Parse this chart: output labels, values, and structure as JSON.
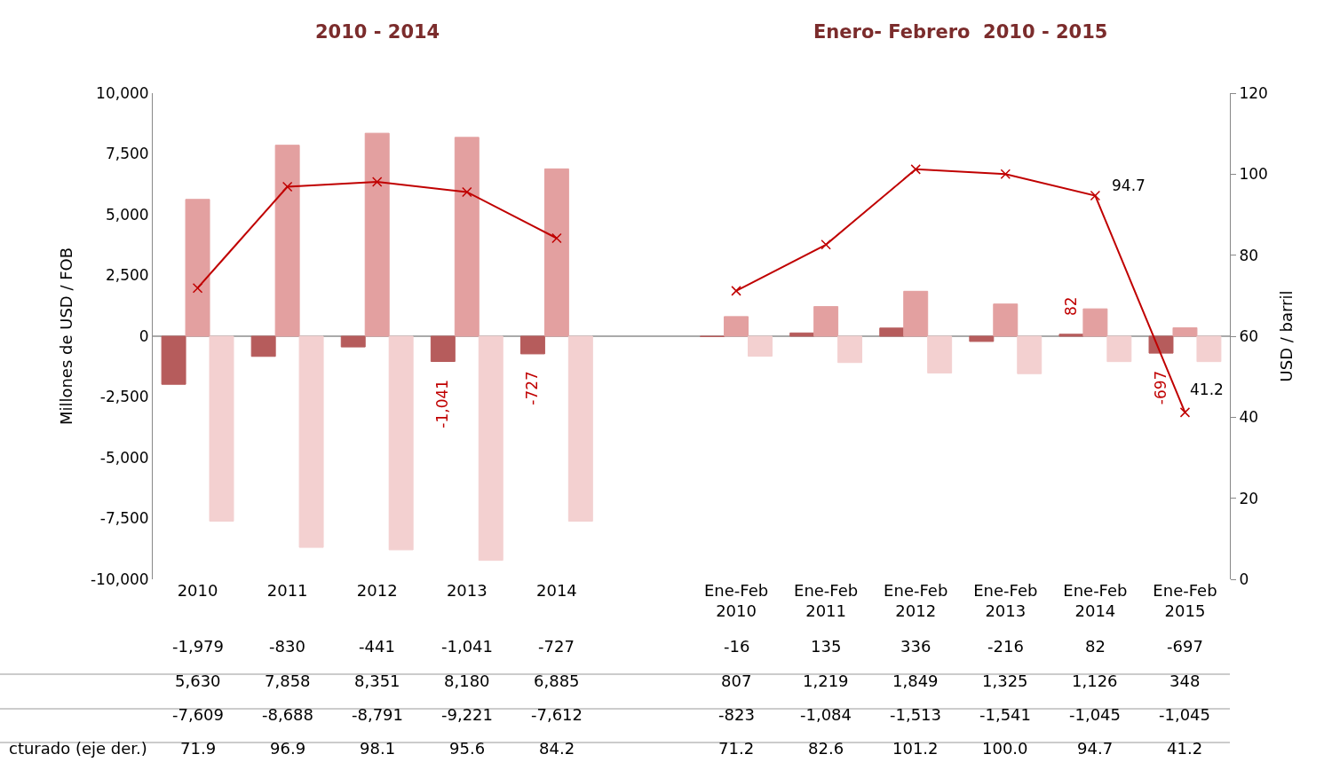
{
  "chart_data": {
    "type": "bar",
    "title": "2010 - 2014",
    "annotations": [
      "Enero- Febrero  2010 - 2015",
      "-1,041",
      "-727",
      "82",
      "-697",
      "94.7",
      "41.2"
    ],
    "categories": [
      "2010",
      "2011",
      "2012",
      "2013",
      "2014",
      null,
      "Ene-Feb 2010",
      "Ene-Feb 2011",
      "Ene-Feb 2012",
      "Ene-Feb 2013",
      "Ene-Feb 2014",
      "Ene-Feb 2015"
    ],
    "series": [
      {
        "color": "#b65c5c",
        "values": [
          -1979,
          -830,
          -441,
          -1041,
          -727,
          null,
          -16,
          135,
          336,
          -216,
          82,
          -697
        ],
        "value_labels": [
          "-1,979",
          "-830",
          "-441",
          "-1,041",
          "-727",
          null,
          "-16",
          "135",
          "336",
          "-216",
          "82",
          "-697"
        ]
      },
      {
        "color": "#e3a0a0",
        "values": [
          5630,
          7858,
          8351,
          8180,
          6885,
          null,
          807,
          1219,
          1849,
          1325,
          1126,
          348
        ],
        "value_labels": [
          "5,630",
          "7,858",
          "8,351",
          "8,180",
          "6,885",
          null,
          "807",
          "1,219",
          "1,849",
          "1,325",
          "1,126",
          "348"
        ]
      },
      {
        "color": "#f3d0d0",
        "values": [
          -7609,
          -8688,
          -8791,
          -9221,
          -7612,
          null,
          -823,
          -1084,
          -1513,
          -1541,
          -1045,
          -1045
        ],
        "value_labels": [
          "-7,609",
          "-8,688",
          "-8,791",
          "-9,221",
          "-7,612",
          null,
          "-823",
          "-1,084",
          "-1,513",
          "-1,541",
          "-1,045",
          "-1,045"
        ]
      },
      {
        "type": "line",
        "axis": "y2",
        "name": "cturado (eje der.)",
        "color": "#c00000",
        "values": [
          71.9,
          96.9,
          98.1,
          95.6,
          84.2,
          null,
          71.2,
          82.6,
          101.2,
          100.0,
          94.7,
          41.2
        ],
        "value_labels": [
          "71.9",
          "96.9",
          "98.1",
          "95.6",
          "84.2",
          null,
          "71.2",
          "82.6",
          "101.2",
          "100.0",
          "94.7",
          "41.2"
        ]
      }
    ],
    "marker": "cross",
    "legend": false,
    "grid": false,
    "ref_lines": [
      {
        "axis": "y",
        "value": 0,
        "color": "#aaaaaa"
      }
    ],
    "ylabel": "Millones de USD / FOB",
    "y2label": "USD / barril",
    "ylim": [
      -10000,
      10000
    ],
    "yticks": [
      {
        "value": -10000,
        "label": "-10,000"
      },
      {
        "value": -7500,
        "label": "-7,500"
      },
      {
        "value": -5000,
        "label": "-5,000"
      },
      {
        "value": -2500,
        "label": "-2,500"
      },
      0,
      {
        "value": 2500,
        "label": "2,500"
      },
      {
        "value": 5000,
        "label": "5,000"
      },
      {
        "value": 7500,
        "label": "7,500"
      },
      {
        "value": 10000,
        "label": "10,000"
      }
    ],
    "y2lim": [
      0,
      120
    ],
    "y2ticks": [
      0,
      20,
      40,
      60,
      80,
      100,
      120
    ]
  }
}
